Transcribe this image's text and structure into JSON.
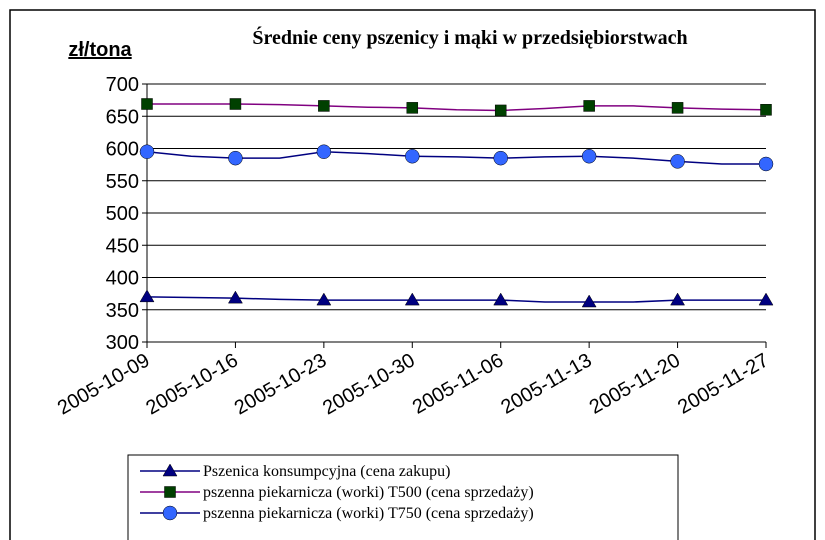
{
  "chart_data": {
    "type": "line",
    "title": "Średnie ceny pszenicy i mąki w przedsiębiorstwach",
    "y_label": "zł/tona",
    "categories": [
      "2005-10-09",
      null,
      "2005-10-16",
      null,
      "2005-10-23",
      null,
      "2005-10-30",
      null,
      "2005-11-06",
      null,
      "2005-11-13",
      null,
      "2005-11-20",
      null,
      "2005-11-27"
    ],
    "ylim": [
      300,
      700
    ],
    "yticks": [
      300,
      350,
      400,
      450,
      500,
      550,
      600,
      650,
      700
    ],
    "grid": true,
    "series": [
      {
        "name": "Pszenica konsumpcyjna (cena zakupu)",
        "color": "#000080",
        "marker": "triangle",
        "marker_color": "#000080",
        "values": [
          370,
          369,
          368,
          366,
          365,
          365,
          365,
          365,
          365,
          362,
          362,
          362,
          365,
          365,
          365
        ]
      },
      {
        "name": "pszenna piekarnicza (worki) T500 (cena sprzedaży)",
        "color": "#800080",
        "marker": "square",
        "marker_color": "#004000",
        "values": [
          669,
          669,
          669,
          668,
          666,
          664,
          663,
          660,
          659,
          662,
          666,
          666,
          663,
          661,
          660
        ]
      },
      {
        "name": "pszenna piekarnicza (worki) T750 (cena sprzedaży)",
        "color": "#000080",
        "marker": "circle",
        "marker_color": "#3366ff",
        "values": [
          595,
          588,
          585,
          585,
          595,
          592,
          588,
          587,
          585,
          587,
          588,
          585,
          580,
          576,
          576
        ]
      }
    ]
  }
}
